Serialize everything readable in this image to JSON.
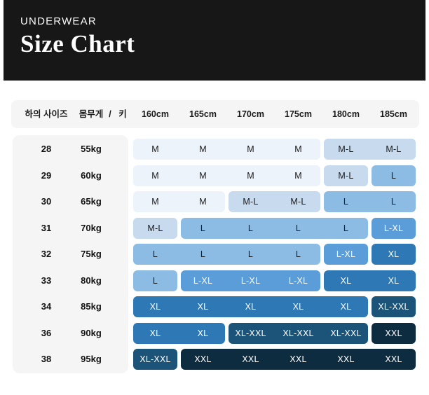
{
  "banner": {
    "eyebrow": "UNDERWEAR",
    "title": "Size Chart",
    "bg": "#171717",
    "text_color": "#ffffff"
  },
  "table": {
    "corner_headers": {
      "size": "하의 사이즈",
      "weight": "몸무게",
      "separator": "/",
      "height": "키"
    },
    "height_columns": [
      "160cm",
      "165cm",
      "170cm",
      "175cm",
      "180cm",
      "185cm"
    ],
    "size_scale": [
      "M",
      "M-L",
      "L",
      "L-XL",
      "XL",
      "XL-XXL",
      "XXL"
    ],
    "levels": {
      "M": {
        "bg": "#edf3fb",
        "fg": "#1a1a1a"
      },
      "M-L": {
        "bg": "#c7daee",
        "fg": "#1a1a1a"
      },
      "L": {
        "bg": "#8cbce4",
        "fg": "#1a1a1a"
      },
      "L-XL": {
        "bg": "#5b9dd9",
        "fg": "#ffffff"
      },
      "XL": {
        "bg": "#2e79b5",
        "fg": "#ffffff"
      },
      "XL-XXL": {
        "bg": "#1b5379",
        "fg": "#ffffff"
      },
      "XXL": {
        "bg": "#0e2c40",
        "fg": "#ffffff"
      }
    },
    "rows": [
      {
        "size": "28",
        "weight": "55kg",
        "groups": [
          {
            "label": "M",
            "span": 4
          },
          {
            "label": "M-L",
            "span": 2
          }
        ]
      },
      {
        "size": "29",
        "weight": "60kg",
        "groups": [
          {
            "label": "M",
            "span": 4
          },
          {
            "label": "M-L",
            "span": 1
          },
          {
            "label": "L",
            "span": 1
          }
        ]
      },
      {
        "size": "30",
        "weight": "65kg",
        "groups": [
          {
            "label": "M",
            "span": 2
          },
          {
            "label": "M-L",
            "span": 2
          },
          {
            "label": "L",
            "span": 2
          }
        ]
      },
      {
        "size": "31",
        "weight": "70kg",
        "groups": [
          {
            "label": "M-L",
            "span": 1
          },
          {
            "label": "L",
            "span": 4
          },
          {
            "label": "L-XL",
            "span": 1
          }
        ]
      },
      {
        "size": "32",
        "weight": "75kg",
        "groups": [
          {
            "label": "L",
            "span": 4
          },
          {
            "label": "L-XL",
            "span": 1
          },
          {
            "label": "XL",
            "span": 1
          }
        ]
      },
      {
        "size": "33",
        "weight": "80kg",
        "groups": [
          {
            "label": "L",
            "span": 1
          },
          {
            "label": "L-XL",
            "span": 3
          },
          {
            "label": "XL",
            "span": 2
          }
        ]
      },
      {
        "size": "34",
        "weight": "85kg",
        "groups": [
          {
            "label": "XL",
            "span": 5
          },
          {
            "label": "XL-XXL",
            "span": 1
          }
        ]
      },
      {
        "size": "36",
        "weight": "90kg",
        "groups": [
          {
            "label": "XL",
            "span": 2
          },
          {
            "label": "XL-XXL",
            "span": 3
          },
          {
            "label": "XXL",
            "span": 1
          }
        ]
      },
      {
        "size": "38",
        "weight": "95kg",
        "groups": [
          {
            "label": "XL-XXL",
            "span": 1
          },
          {
            "label": "XXL",
            "span": 5
          }
        ]
      }
    ]
  },
  "chart_data": {
    "type": "heatmap",
    "title": "Size Chart",
    "subtitle": "UNDERWEAR",
    "xlabel": "키 (height)",
    "ylabel": "하의 사이즈 / 몸무게 (bottom size / weight)",
    "x_categories": [
      "160cm",
      "165cm",
      "170cm",
      "175cm",
      "180cm",
      "185cm"
    ],
    "y_categories": [
      "28 / 55kg",
      "29 / 60kg",
      "30 / 65kg",
      "31 / 70kg",
      "32 / 75kg",
      "33 / 80kg",
      "34 / 85kg",
      "36 / 90kg",
      "38 / 95kg"
    ],
    "values": [
      [
        "M",
        "M",
        "M",
        "M",
        "M-L",
        "M-L"
      ],
      [
        "M",
        "M",
        "M",
        "M",
        "M-L",
        "L"
      ],
      [
        "M",
        "M",
        "M-L",
        "M-L",
        "L",
        "L"
      ],
      [
        "M-L",
        "L",
        "L",
        "L",
        "L",
        "L-XL"
      ],
      [
        "L",
        "L",
        "L",
        "L",
        "L-XL",
        "XL"
      ],
      [
        "L",
        "L-XL",
        "L-XL",
        "L-XL",
        "XL",
        "XL"
      ],
      [
        "XL",
        "XL",
        "XL",
        "XL",
        "XL",
        "XL-XXL"
      ],
      [
        "XL",
        "XL",
        "XL-XXL",
        "XL-XXL",
        "XL-XXL",
        "XXL"
      ],
      [
        "XL-XXL",
        "XXL",
        "XXL",
        "XXL",
        "XXL",
        "XXL"
      ]
    ],
    "color_scale": {
      "M": "#edf3fb",
      "M-L": "#c7daee",
      "L": "#8cbce4",
      "L-XL": "#5b9dd9",
      "XL": "#2e79b5",
      "XL-XXL": "#1b5379",
      "XXL": "#0e2c40"
    },
    "legend_position": "none",
    "grid": false
  }
}
